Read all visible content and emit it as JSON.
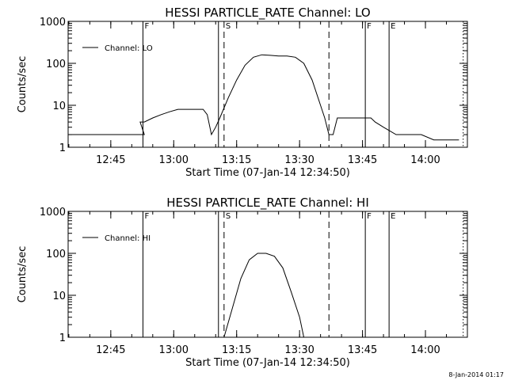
{
  "chart_data": [
    {
      "type": "line",
      "title": "HESSI PARTICLE_RATE Channel: LO",
      "xlabel": "Start Time (07-Jan-14 12:34:50)",
      "ylabel": "Counts/sec",
      "y_scale": "log",
      "ylim": [
        1,
        1000
      ],
      "xlim": [
        "12:34:50",
        "14:10:00"
      ],
      "x_ticks": [
        "12:45",
        "13:00",
        "13:15",
        "13:30",
        "13:45",
        "14:00"
      ],
      "y_ticks": [
        "1",
        "10",
        "100",
        "1000"
      ],
      "legend": "top-left",
      "grid": false,
      "series": [
        {
          "name": "Channel: LO",
          "x": [
            "12:35:00",
            "12:38:00",
            "12:41:00",
            "12:44:00",
            "12:47:00",
            "12:50:00",
            "12:53:00",
            "12:52:00",
            "12:53:00",
            "12:55:00",
            "12:57:00",
            "12:59:00",
            "13:01:00",
            "13:03:00",
            "13:05:00",
            "13:07:00",
            "13:08:00",
            "13:09:00",
            "13:10:00",
            "13:11:00",
            "13:13:00",
            "13:15:00",
            "13:17:00",
            "13:19:00",
            "13:21:00",
            "13:23:00",
            "13:25:00",
            "13:27:00",
            "13:29:00",
            "13:31:00",
            "13:33:00",
            "13:35:00",
            "13:36:00",
            "13:37:00",
            "13:38:00",
            "13:39:00",
            "13:41:00",
            "13:43:00",
            "13:45:00",
            "13:47:00",
            "13:48:00",
            "13:50:00",
            "13:53:00",
            "13:56:00",
            "13:59:00",
            "14:02:00",
            "14:05:00",
            "14:08:00"
          ],
          "values": [
            2,
            2,
            2,
            2,
            2,
            2,
            2,
            4,
            4,
            5,
            6,
            7,
            8,
            8,
            8,
            8,
            6,
            2,
            3,
            5,
            15,
            40,
            90,
            140,
            160,
            155,
            150,
            150,
            140,
            100,
            40,
            10,
            5,
            2,
            2,
            5,
            5,
            5,
            5,
            5,
            4,
            3,
            2,
            2,
            2,
            1.5,
            1.5,
            1.5
          ]
        }
      ],
      "markers": [
        {
          "time": "12:52:40",
          "style": "solid",
          "label": "F"
        },
        {
          "time": "13:10:40",
          "style": "solid",
          "label": ""
        },
        {
          "time": "13:12:00",
          "style": "dashed",
          "label": "S"
        },
        {
          "time": "13:37:00",
          "style": "dashed",
          "label": ""
        },
        {
          "time": "13:45:40",
          "style": "solid",
          "label": "F"
        },
        {
          "time": "13:51:20",
          "style": "solid",
          "label": "E"
        },
        {
          "time": "14:09:00",
          "style": "dotted",
          "label": ""
        }
      ]
    },
    {
      "type": "line",
      "title": "HESSI PARTICLE_RATE Channel: HI",
      "xlabel": "Start Time (07-Jan-14 12:34:50)",
      "ylabel": "Counts/sec",
      "y_scale": "log",
      "ylim": [
        1,
        1000
      ],
      "xlim": [
        "12:34:50",
        "14:10:00"
      ],
      "x_ticks": [
        "12:45",
        "13:00",
        "13:15",
        "13:30",
        "13:45",
        "14:00"
      ],
      "y_ticks": [
        "1",
        "10",
        "100",
        "1000"
      ],
      "legend": "top-left",
      "grid": false,
      "series": [
        {
          "name": "Channel: HI",
          "x": [
            "13:12:00",
            "13:14:00",
            "13:16:00",
            "13:18:00",
            "13:20:00",
            "13:22:00",
            "13:24:00",
            "13:26:00",
            "13:28:00",
            "13:30:00",
            "13:31:00"
          ],
          "values": [
            1,
            5,
            25,
            70,
            100,
            100,
            85,
            45,
            12,
            3,
            1
          ]
        }
      ],
      "markers": [
        {
          "time": "12:52:40",
          "style": "solid",
          "label": "F"
        },
        {
          "time": "13:10:40",
          "style": "solid",
          "label": ""
        },
        {
          "time": "13:12:00",
          "style": "dashed",
          "label": "S"
        },
        {
          "time": "13:37:00",
          "style": "dashed",
          "label": ""
        },
        {
          "time": "13:45:40",
          "style": "solid",
          "label": "F"
        },
        {
          "time": "13:51:20",
          "style": "solid",
          "label": "E"
        },
        {
          "time": "14:09:00",
          "style": "dotted",
          "label": ""
        }
      ]
    }
  ],
  "footer": {
    "timestamp": "8-Jan-2014 01:17"
  }
}
